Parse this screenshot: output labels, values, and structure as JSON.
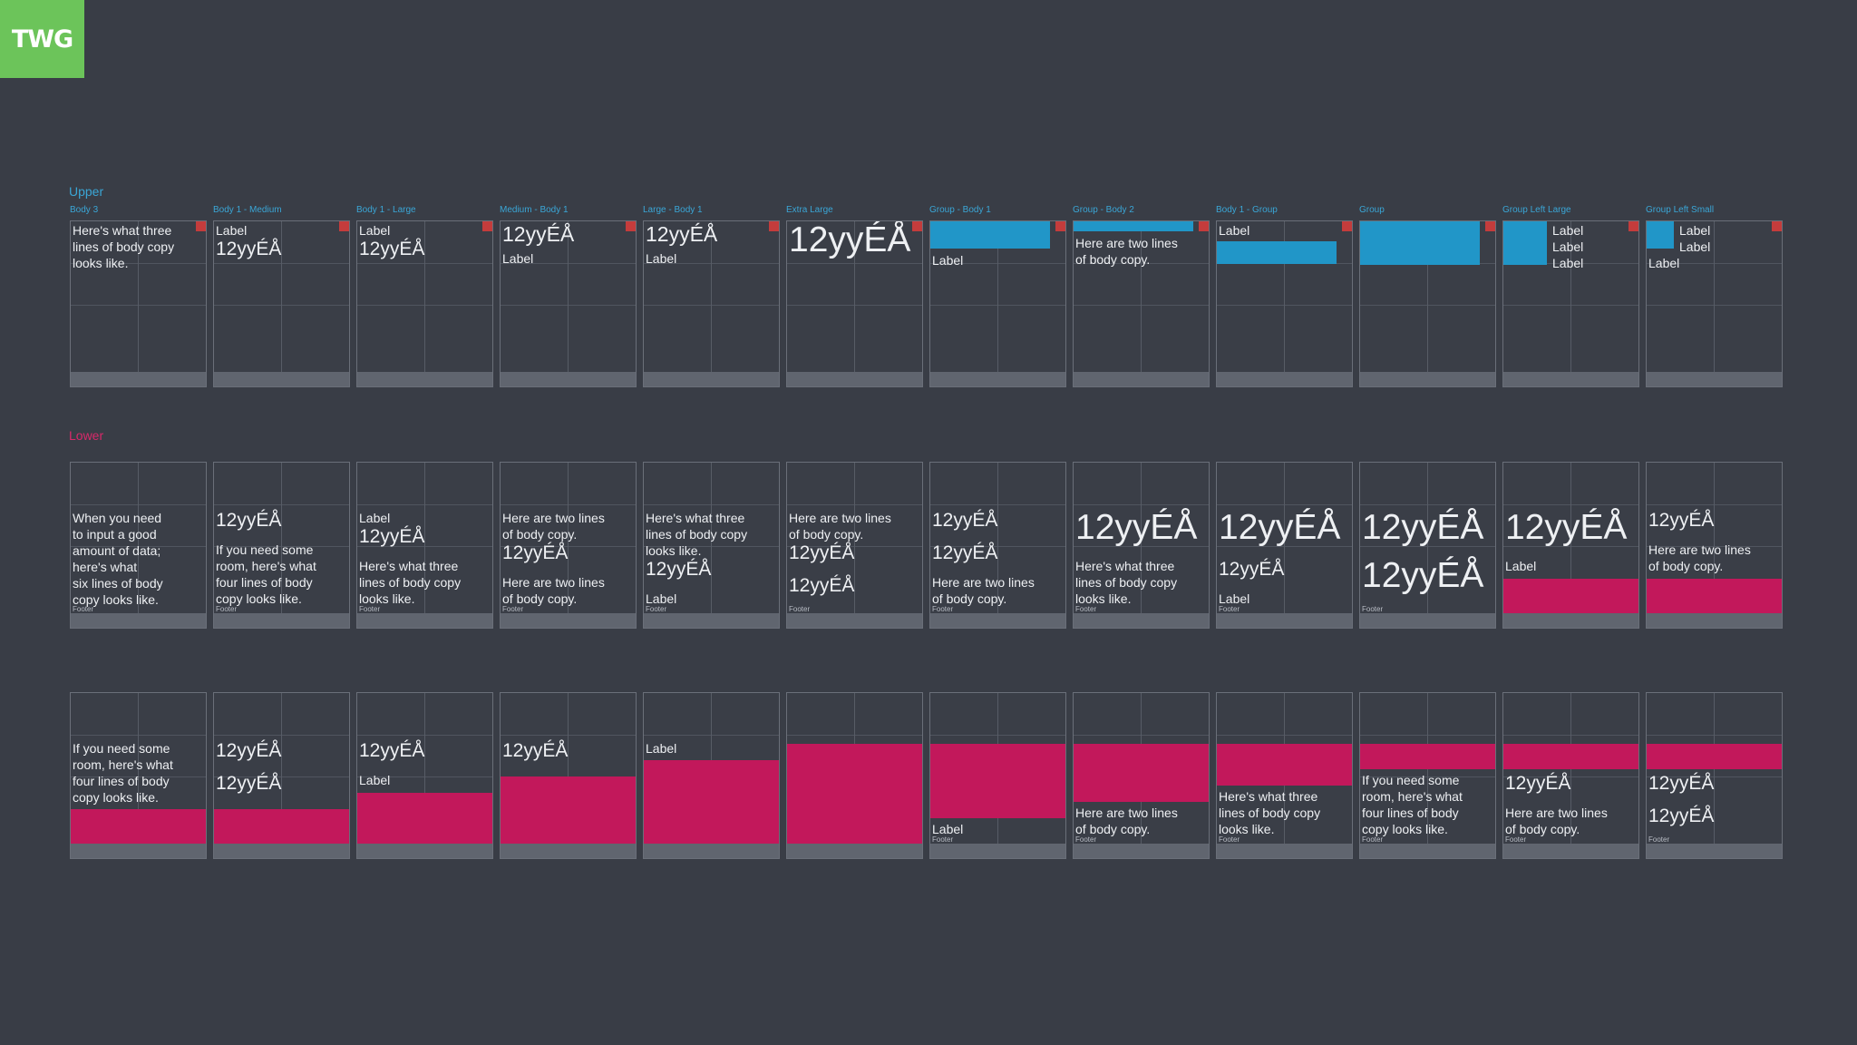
{
  "logo": {
    "text": "TWG",
    "color": "#6cc45a"
  },
  "sections": {
    "upper": "Upper",
    "lower": "Lower"
  },
  "colors": {
    "background": "#393d46",
    "accent_blue": "#3aa6d6",
    "accent_pink": "#d8296a",
    "fill_pink": "#c2185b",
    "fill_blue": "#2196c8",
    "marker_red": "#c43c3c"
  },
  "row1_titles": [
    "Body 3",
    "Body 1 - Medium",
    "Body 1 - Large",
    "Medium - Body 1",
    "Large - Body 1",
    "Extra Large",
    "Group - Body 1",
    "Group - Body 2",
    "Body 1 - Group",
    "Group",
    "Group Left Large",
    "Group Left Small"
  ],
  "texts": {
    "label": "Label",
    "sample": "12yyÉÅ",
    "footer": "Footer",
    "body_two": [
      "Here are two lines",
      "of body copy."
    ],
    "body_three": [
      "Here's what three",
      "lines of body copy",
      "looks like."
    ],
    "body_three_short": [
      "Here's what three",
      "lines of body copy",
      "looks like."
    ],
    "body_four": [
      "If you need some",
      "room, here's what",
      "four lines of body",
      "copy looks like."
    ],
    "body_six": [
      "When you need",
      "to input a good",
      "amount of data;",
      "here's what",
      "six lines of body",
      "copy looks like."
    ]
  }
}
